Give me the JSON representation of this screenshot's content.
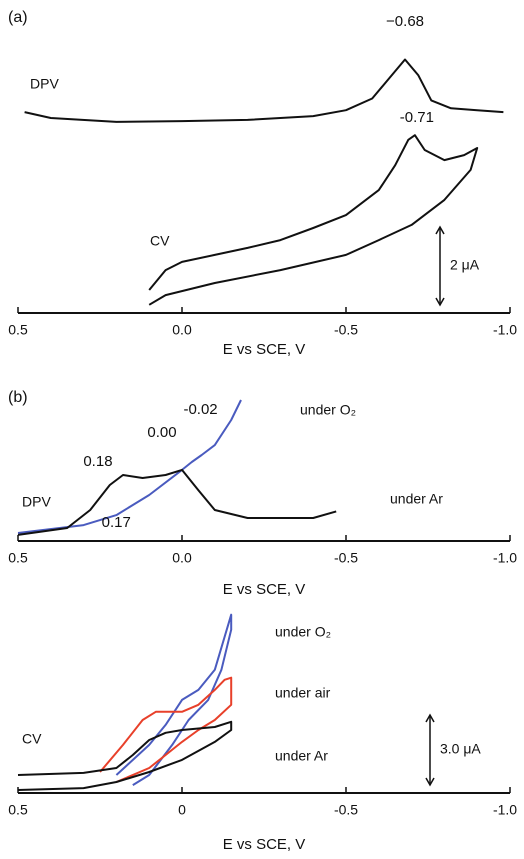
{
  "chart_data": [
    {
      "type": "line",
      "panel": "(a)",
      "x_label": "E vs SCE, V",
      "xlim": [
        0.5,
        -1.0
      ],
      "xticks": [
        0.5,
        {
          "value": 0,
          "label": "0.0"
        },
        -0.5,
        {
          "value": -1.0,
          "label": "-1.0"
        }
      ],
      "ylim": [
        0,
        7
      ],
      "series": [
        {
          "name": "DPV",
          "color": "#111111",
          "x": [
            0.48,
            0.4,
            0.2,
            0,
            -0.2,
            -0.4,
            -0.5,
            -0.58,
            -0.63,
            -0.68,
            -0.72,
            -0.76,
            -0.82,
            -0.9,
            -0.98
          ],
          "values": [
            5.15,
            5.0,
            4.9,
            4.92,
            4.95,
            5.05,
            5.2,
            5.5,
            6.0,
            6.5,
            6.1,
            5.45,
            5.25,
            5.2,
            5.15
          ]
        },
        {
          "name": "CV",
          "color": "#111111",
          "x": [
            0.1,
            0.05,
            0,
            -0.1,
            -0.2,
            -0.3,
            -0.4,
            -0.5,
            -0.6,
            -0.65,
            -0.69,
            -0.71,
            -0.74,
            -0.8,
            -0.86,
            -0.9,
            -0.88,
            -0.8,
            -0.7,
            -0.6,
            -0.5,
            -0.3,
            -0.1,
            0.05,
            0.1
          ],
          "values": [
            0.59,
            1.1,
            1.31,
            1.49,
            1.67,
            1.87,
            2.18,
            2.51,
            3.15,
            3.79,
            4.44,
            4.56,
            4.18,
            3.92,
            4.05,
            4.23,
            3.67,
            2.9,
            2.26,
            1.87,
            1.49,
            1.1,
            0.77,
            0.46,
            0.21
          ]
        }
      ],
      "annotations": [
        {
          "label": "−0.68",
          "value": -0.68,
          "color": "#111111"
        },
        {
          "label": "-0.71",
          "value": -0.71,
          "color": "#111111"
        }
      ],
      "scale_bar": {
        "label": "2 μA",
        "value": 2
      }
    },
    {
      "type": "line",
      "panel": "(b)",
      "label": "DPV",
      "x_label": "E vs SCE, V",
      "xlim": [
        0.5,
        -1.0
      ],
      "xticks": [
        0.5,
        {
          "value": 0,
          "label": "0.0"
        },
        -0.5,
        {
          "value": -1.0,
          "label": "-1.0"
        }
      ],
      "ylim": [
        0,
        10
      ],
      "series": [
        {
          "name": "under O₂",
          "color": "#4a5bbf",
          "x": [
            0.5,
            0.3,
            0.2,
            0.1,
            0,
            -0.03,
            -0.06,
            -0.1,
            -0.15,
            -0.18
          ],
          "values": [
            0.57,
            1.13,
            1.84,
            3.26,
            5.04,
            5.6,
            6.1,
            6.8,
            8.58,
            10
          ]
        },
        {
          "name": "under Ar",
          "color": "#111111",
          "x": [
            0.5,
            0.35,
            0.28,
            0.22,
            0.18,
            0.12,
            0.05,
            0,
            -0.05,
            -0.1,
            -0.2,
            -0.4,
            -0.47
          ],
          "values": [
            0.43,
            0.92,
            2.2,
            3.97,
            4.68,
            4.47,
            4.68,
            5.04,
            3.6,
            2.2,
            1.63,
            1.63,
            2.1
          ]
        }
      ],
      "annotations": [
        {
          "label": "0.18",
          "value": 0.18,
          "color": "#111111"
        },
        {
          "label": "0.00",
          "value": 0,
          "color": "#111111"
        },
        {
          "label": "-0.02",
          "value": -0.02,
          "color": "#4a5bbf"
        },
        {
          "label": "0.17",
          "value": 0.17,
          "color": "#4a5bbf"
        }
      ]
    },
    {
      "type": "line",
      "label": "CV",
      "x_label": "E vs SCE, V",
      "xlim": [
        0.5,
        -1.0
      ],
      "xticks": [
        0.5,
        {
          "value": 0,
          "label": "0"
        },
        -0.5,
        {
          "value": -1.0,
          "label": "-1.0"
        }
      ],
      "ylim": [
        0,
        7.5
      ],
      "series": [
        {
          "name": "under O₂",
          "color": "#4a5bbf",
          "x": [
            0.2,
            0.1,
            0.05,
            0,
            -0.05,
            -0.1,
            -0.15,
            -0.15,
            -0.12,
            -0.08,
            -0.02,
            0.03,
            0.1,
            0.15
          ],
          "values": [
            0.77,
            2.06,
            2.92,
            3.99,
            4.42,
            5.28,
            7.64,
            7.0,
            5.28,
            3.99,
            3.13,
            2.06,
            0.77,
            0.34
          ]
        },
        {
          "name": "under air",
          "color": "#e8402a",
          "x": [
            0.25,
            0.18,
            0.12,
            0.08,
            0,
            -0.05,
            -0.1,
            -0.13,
            -0.15,
            -0.15,
            -0.1,
            -0.05,
            0,
            0.05,
            0.1,
            0.2
          ],
          "values": [
            0.9,
            2.06,
            3.13,
            3.48,
            3.48,
            3.78,
            4.42,
            4.85,
            4.94,
            3.78,
            3.13,
            2.7,
            2.19,
            1.63,
            1.07,
            0.47
          ]
        },
        {
          "name": "under Ar",
          "color": "#111111",
          "x": [
            0.5,
            0.3,
            0.2,
            0.15,
            0.1,
            0.05,
            0,
            -0.1,
            -0.15,
            -0.15,
            -0.1,
            0,
            0.1,
            0.2,
            0.3,
            0.5
          ],
          "values": [
            0.77,
            0.86,
            1.07,
            1.63,
            2.27,
            2.58,
            2.7,
            2.83,
            3.05,
            2.7,
            2.19,
            1.42,
            0.9,
            0.47,
            0.21,
            0.13
          ]
        }
      ],
      "scale_bar": {
        "label": "3.0 μA",
        "value": 3.0
      }
    }
  ]
}
